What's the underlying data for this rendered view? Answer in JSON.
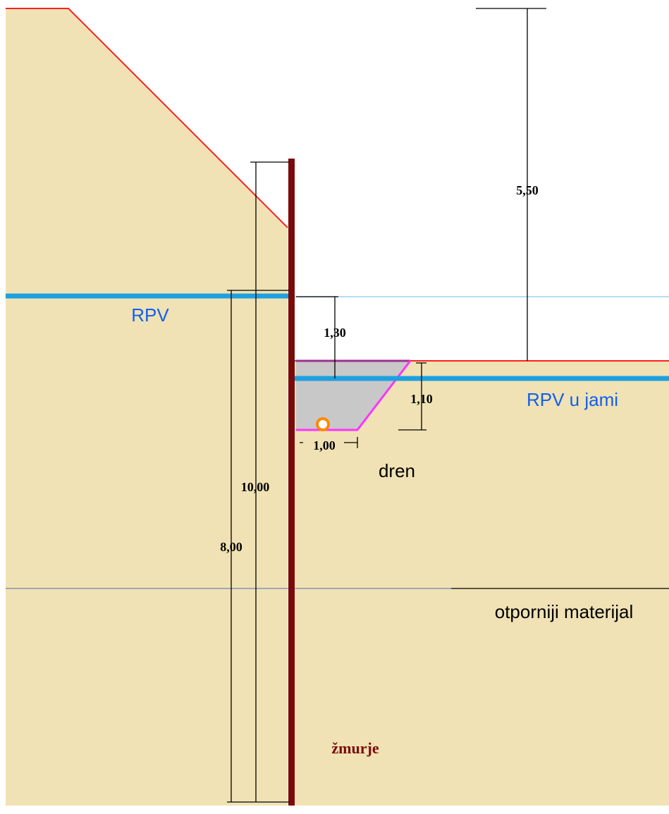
{
  "labels": {
    "water_level": "RPV",
    "water_level_pit": "RPV u jami",
    "drain": "dren",
    "stiff_layer": "otporniji materijal",
    "sheet_pile": "žmurje"
  },
  "dimensions": {
    "excavation_depth": "5,50",
    "water_drop": "1,30",
    "drain_depth": "1,10",
    "drain_width": "1,00",
    "pile_length": "10,00",
    "depth_below_water": "8,00"
  }
}
